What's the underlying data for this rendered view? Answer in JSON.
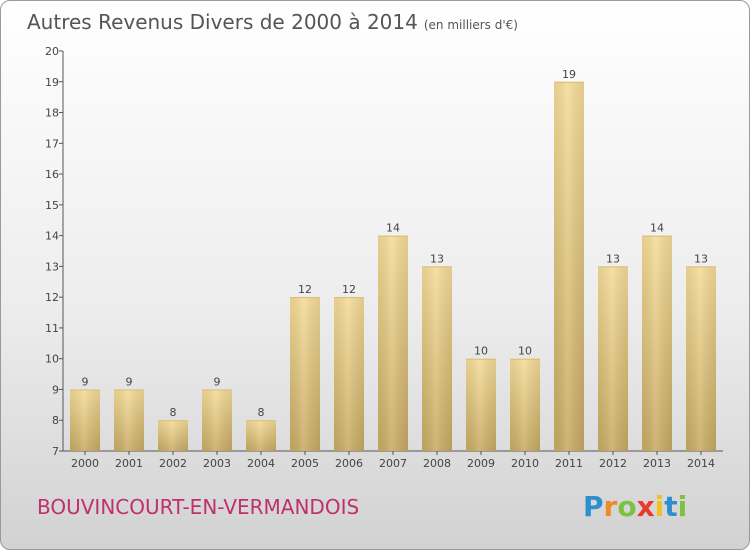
{
  "title": "Autres Revenus Divers de 2000 à 2014",
  "subtitle": "(en milliers d'€)",
  "location": "BOUVINCOURT-EN-VERMANDOIS",
  "logo": {
    "letters": [
      "P",
      "r",
      "o",
      "x",
      "i",
      "t",
      "i"
    ],
    "colors": [
      "#2d8fd0",
      "#f08a24",
      "#7cc242",
      "#e8392d",
      "#f0c020",
      "#2d8fd0",
      "#7cc242"
    ]
  },
  "chart_data": {
    "type": "bar",
    "categories": [
      "2000",
      "2001",
      "2002",
      "2003",
      "2004",
      "2005",
      "2006",
      "2007",
      "2008",
      "2009",
      "2010",
      "2011",
      "2012",
      "2013",
      "2014"
    ],
    "values": [
      9,
      9,
      8,
      9,
      8,
      12,
      12,
      14,
      13,
      10,
      10,
      19,
      13,
      14,
      13
    ],
    "ylim": [
      7,
      20
    ],
    "yticks": [
      7,
      8,
      9,
      10,
      11,
      12,
      13,
      14,
      15,
      16,
      17,
      18,
      19,
      20
    ],
    "grid": false,
    "bar_color": "#e8c97a"
  }
}
